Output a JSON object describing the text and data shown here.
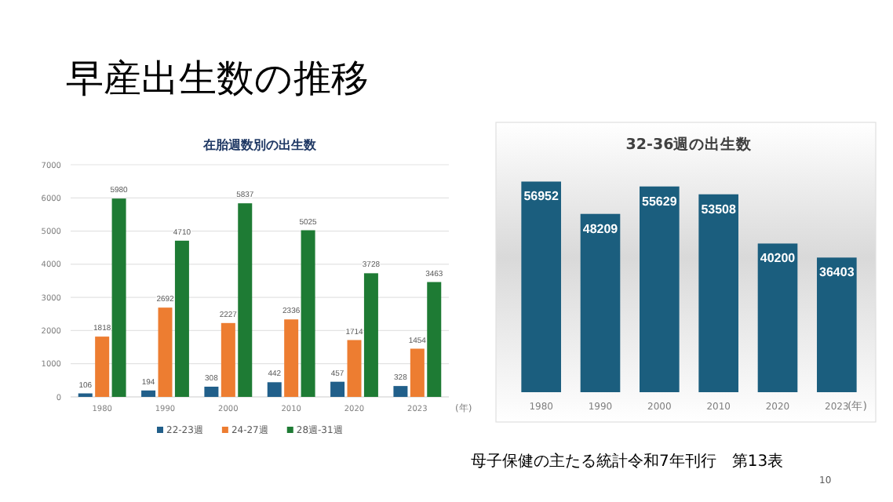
{
  "chart_data": [
    {
      "type": "bar",
      "title": "在胎週数別の出生数",
      "xlabel": "(年)",
      "annotations": [
        "早産出生数の推移"
      ],
      "categories": [
        "1980",
        "1990",
        "2000",
        "2010",
        "2020",
        "2023"
      ],
      "series": [
        {
          "name": "22-23週",
          "color": "#215f8a",
          "values": [
            106,
            194,
            308,
            442,
            457,
            328
          ]
        },
        {
          "name": "24-27週",
          "color": "#ed7d31",
          "values": [
            1818,
            2692,
            2227,
            2336,
            1714,
            1454
          ]
        },
        {
          "name": "28週-31週",
          "color": "#1e7b34",
          "values": [
            5980,
            4710,
            5837,
            5025,
            3728,
            3463
          ]
        }
      ],
      "ylim": [
        0,
        7000
      ],
      "yticks": [
        0,
        1000,
        2000,
        3000,
        4000,
        5000,
        6000,
        7000
      ],
      "grid": "y",
      "legend": "bottom",
      "data_labels": true
    },
    {
      "type": "bar",
      "title": "32-36週の出生数",
      "xlabel": "(年)",
      "annotations": [
        "母子保健の主たる統計令和7年刊行　第13表",
        "10"
      ],
      "categories": [
        "1980",
        "1990",
        "2000",
        "2010",
        "2020",
        "2023"
      ],
      "values": [
        56952,
        48209,
        55629,
        53508,
        40200,
        36403
      ],
      "color": "#1b5e7e",
      "data_labels": true
    }
  ]
}
